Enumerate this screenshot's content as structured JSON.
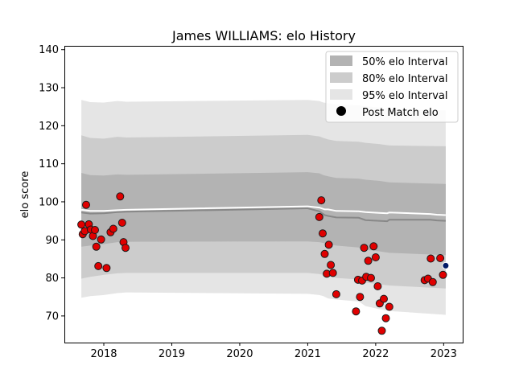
{
  "chart_data": {
    "type": "line",
    "title": "James WILLIAMS: elo History",
    "xlabel": "",
    "ylabel": "elo score",
    "xlim": [
      2017.42,
      2023.28
    ],
    "ylim": [
      63,
      141
    ],
    "x_ticks": [
      2018,
      2019,
      2020,
      2021,
      2022,
      2023
    ],
    "y_ticks": [
      70,
      80,
      90,
      100,
      110,
      120,
      130,
      140
    ],
    "grid": false,
    "legend_position": "top-right",
    "legend": {
      "band50": "50% elo Interval",
      "band80": "80% elo Interval",
      "band95": "95% elo Interval",
      "points": "Post Match elo"
    },
    "colors": {
      "band50": "#b3b3b3",
      "band80": "#cccccc",
      "band95": "#e5e5e5",
      "point_fill": "#e00000",
      "point_edge": "#1a1a1a",
      "last_point_fill": "#001a66",
      "mean_line": "#ffffff",
      "median_line": "#888888"
    },
    "band_x": [
      2017.67,
      2017.8,
      2018.0,
      2018.2,
      2018.33,
      2021.0,
      2021.17,
      2021.23,
      2021.3,
      2021.42,
      2021.75,
      2021.85,
      2022.05,
      2022.2,
      2023.03
    ],
    "bands": {
      "p2_5": [
        74.8,
        75.2,
        75.5,
        76.0,
        76.2,
        75.8,
        75.5,
        75.2,
        74.6,
        74.3,
        73.8,
        72.6,
        71.8,
        71.3,
        70.3
      ],
      "p10": [
        79.8,
        80.3,
        80.8,
        81.2,
        81.3,
        81.3,
        81.0,
        80.8,
        80.5,
        80.0,
        79.6,
        78.8,
        78.3,
        78.0,
        77.2
      ],
      "p25": [
        88.2,
        88.5,
        88.9,
        89.4,
        89.5,
        89.6,
        89.4,
        89.2,
        88.9,
        88.5,
        88.0,
        87.4,
        87.0,
        86.6,
        86.0
      ],
      "p75": [
        107.6,
        107.0,
        106.9,
        107.2,
        107.1,
        107.8,
        107.5,
        107.0,
        106.7,
        106.3,
        106.1,
        105.8,
        105.5,
        105.1,
        104.7
      ],
      "p90": [
        117.5,
        116.8,
        116.6,
        117.1,
        116.9,
        117.6,
        117.2,
        116.8,
        116.4,
        116.0,
        115.8,
        115.5,
        115.2,
        114.8,
        114.6
      ],
      "p97_5": [
        126.8,
        126.2,
        126.1,
        126.5,
        126.3,
        126.8,
        126.5,
        126.1,
        125.9,
        125.6,
        125.4,
        125.1,
        124.8,
        124.4,
        124.0
      ]
    },
    "series": [
      {
        "x": [
          2017.67,
          2017.8,
          2018.0,
          2018.2,
          2018.33,
          2021.0,
          2021.17,
          2021.25,
          2021.3,
          2021.42,
          2021.75,
          2021.85,
          2022.05,
          2022.17,
          2022.2,
          2022.8,
          2022.9,
          2023.03
        ],
        "values": [
          97.9,
          97.6,
          97.6,
          97.8,
          97.9,
          98.8,
          98.5,
          98.0,
          98.0,
          97.6,
          97.5,
          97.3,
          97.1,
          97.0,
          97.2,
          96.8,
          96.6,
          96.5
        ]
      },
      {
        "x": [
          2017.67,
          2017.8,
          2018.0,
          2018.2,
          2018.33,
          2021.0,
          2021.17,
          2021.25,
          2021.3,
          2021.42,
          2021.75,
          2021.85,
          2022.05,
          2022.17,
          2022.2,
          2022.8,
          2022.9,
          2023.03
        ],
        "values": [
          97.2,
          96.9,
          97.0,
          97.3,
          97.4,
          98.3,
          97.5,
          96.5,
          96.3,
          95.9,
          95.8,
          95.2,
          95.0,
          94.9,
          95.3,
          95.3,
          95.1,
          95.0
        ]
      }
    ],
    "points": {
      "x": [
        2017.67,
        2017.69,
        2017.72,
        2017.74,
        2017.78,
        2017.81,
        2017.84,
        2017.87,
        2017.89,
        2017.92,
        2017.96,
        2018.04,
        2018.1,
        2018.14,
        2018.24,
        2018.27,
        2018.29,
        2018.32,
        2021.17,
        2021.2,
        2021.22,
        2021.25,
        2021.28,
        2021.31,
        2021.34,
        2021.37,
        2021.42,
        2021.71,
        2021.74,
        2021.77,
        2021.8,
        2021.83,
        2021.86,
        2021.89,
        2021.93,
        2021.97,
        2022.0,
        2022.03,
        2022.06,
        2022.09,
        2022.12,
        2022.15,
        2022.2,
        2022.72,
        2022.77,
        2022.81,
        2022.84,
        2022.95,
        2022.99
      ],
      "values": [
        94.0,
        91.5,
        92.3,
        99.2,
        94.1,
        92.7,
        91.0,
        92.6,
        88.2,
        83.1,
        90.1,
        82.6,
        92.0,
        92.9,
        101.4,
        94.5,
        89.4,
        87.9,
        96.0,
        100.4,
        91.7,
        86.3,
        81.1,
        88.7,
        83.4,
        81.3,
        75.7,
        71.2,
        79.5,
        75.0,
        79.3,
        87.9,
        80.3,
        84.5,
        80.0,
        88.3,
        85.4,
        77.8,
        73.3,
        66.1,
        74.5,
        69.4,
        72.4,
        79.4,
        79.8,
        85.1,
        78.9,
        85.2,
        80.8
      ],
      "last": {
        "x": 2023.03,
        "value": 83.2
      }
    }
  }
}
